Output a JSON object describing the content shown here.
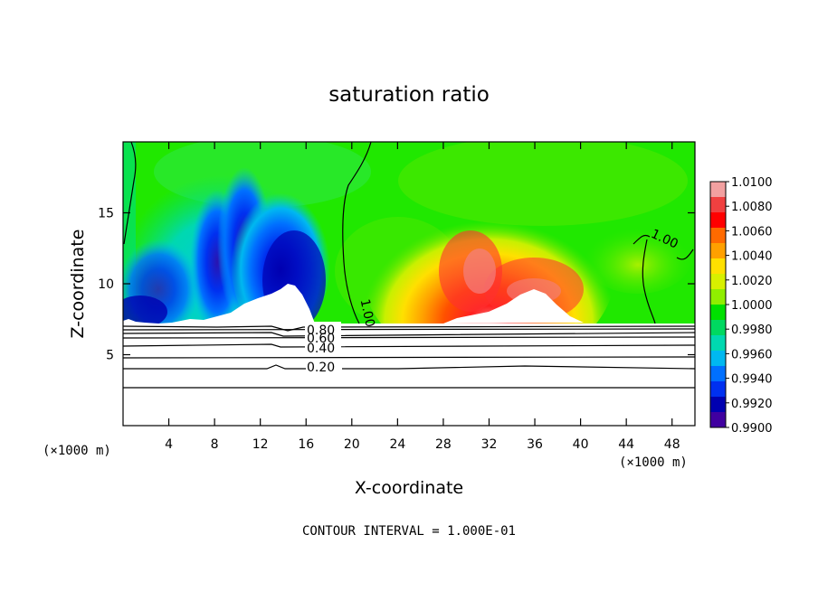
{
  "chart_data": {
    "type": "heatmap",
    "title": "saturation ratio",
    "xlabel": "X-coordinate",
    "ylabel": "Z-coordinate",
    "x_unit_left": "(×1000 m)",
    "x_unit_right": "(×1000 m)",
    "xlim": [
      0,
      50
    ],
    "ylim": [
      0,
      20
    ],
    "x_ticks": [
      4,
      8,
      12,
      16,
      20,
      24,
      28,
      32,
      36,
      40,
      44,
      48
    ],
    "y_ticks": [
      5,
      10,
      15
    ],
    "x_tick_labels": [
      "4",
      "8",
      "12",
      "16",
      "20",
      "24",
      "28",
      "32",
      "36",
      "40",
      "44",
      "48"
    ],
    "y_tick_labels": [
      "5",
      "10",
      "15"
    ],
    "footer": "CONTOUR INTERVAL = 1.000E-01",
    "colorbar": {
      "labels": [
        "1.0100",
        "1.0080",
        "1.0060",
        "1.0040",
        "1.0020",
        "1.0000",
        "0.9980",
        "0.9960",
        "0.9940",
        "0.9920",
        "0.9900"
      ],
      "values": [
        1.01,
        1.008,
        1.006,
        1.004,
        1.002,
        1.0,
        0.998,
        0.996,
        0.994,
        0.992,
        0.99
      ],
      "colors": [
        "#f2a0a0",
        "#f04040",
        "#ff0000",
        "#ff6a00",
        "#ffa000",
        "#ffe000",
        "#d8f000",
        "#90ee00",
        "#00e000",
        "#00d860",
        "#00d8b0",
        "#00b8f0",
        "#0070ff",
        "#0030f0",
        "#0000b0",
        "#4000a0"
      ]
    },
    "contour_labels": [
      "0.80",
      "0.60",
      "0.40",
      "0.20",
      "1.00",
      "1.00"
    ],
    "contour_levels": [
      0.2,
      0.4,
      0.6,
      0.8,
      1.0
    ]
  }
}
